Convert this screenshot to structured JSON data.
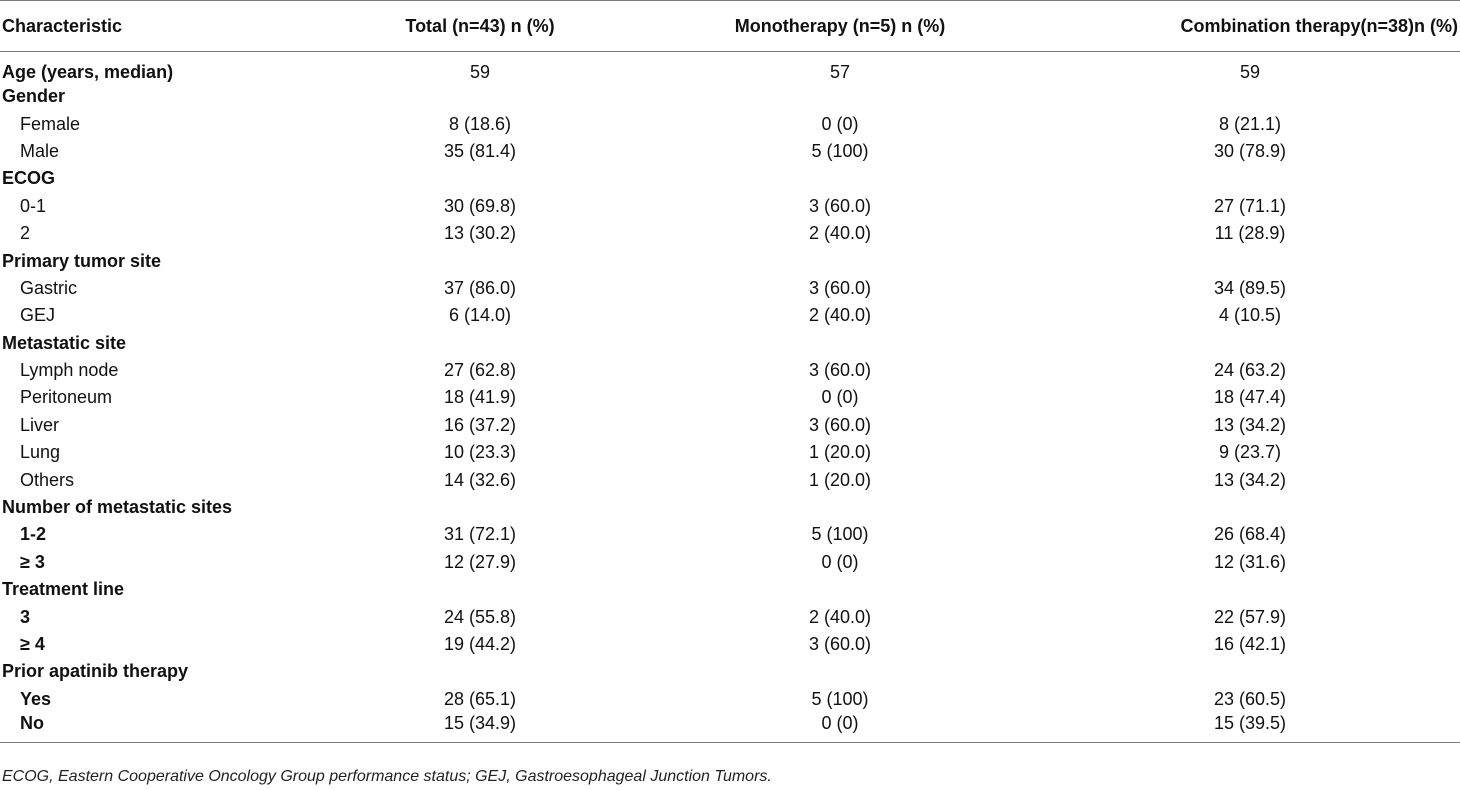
{
  "table": {
    "headers": [
      "Characteristic",
      "Total (n=43) n (%)",
      "Monotherapy (n=5) n (%)",
      "Combination therapy(n=38)n (%)"
    ],
    "rows": [
      {
        "label": "Age  (years, median)",
        "kind": "section",
        "values": [
          "59",
          "57",
          "59"
        ]
      },
      {
        "label": "Gender",
        "kind": "section",
        "values": [
          "",
          "",
          ""
        ]
      },
      {
        "label": "Female",
        "kind": "sub",
        "values": [
          "8 (18.6)",
          "0 (0)",
          "8 (21.1)"
        ]
      },
      {
        "label": "Male",
        "kind": "sub",
        "values": [
          "35 (81.4)",
          "5 (100)",
          "30 (78.9)"
        ]
      },
      {
        "label": "ECOG",
        "kind": "section",
        "values": [
          "",
          "",
          ""
        ]
      },
      {
        "label": "0-1",
        "kind": "sub",
        "values": [
          "30 (69.8)",
          "3 (60.0)",
          "27 (71.1)"
        ]
      },
      {
        "label": "2",
        "kind": "sub",
        "values": [
          "13 (30.2)",
          "2 (40.0)",
          "11 (28.9)"
        ]
      },
      {
        "label": "Primary tumor site",
        "kind": "section",
        "values": [
          "",
          "",
          ""
        ]
      },
      {
        "label": "Gastric",
        "kind": "sub",
        "values": [
          "37 (86.0)",
          "3 (60.0)",
          "34 (89.5)"
        ]
      },
      {
        "label": "GEJ",
        "kind": "sub",
        "values": [
          "6 (14.0)",
          "2 (40.0)",
          "4 (10.5)"
        ]
      },
      {
        "label": "Metastatic site",
        "kind": "section",
        "values": [
          "",
          "",
          ""
        ]
      },
      {
        "label": "Lymph node",
        "kind": "sub",
        "values": [
          "27 (62.8)",
          "3 (60.0)",
          "24 (63.2)"
        ]
      },
      {
        "label": "Peritoneum",
        "kind": "sub",
        "values": [
          "18 (41.9)",
          "0 (0)",
          "18 (47.4)"
        ]
      },
      {
        "label": "Liver",
        "kind": "sub",
        "values": [
          "16 (37.2)",
          "3 (60.0)",
          "13 (34.2)"
        ]
      },
      {
        "label": "Lung",
        "kind": "sub",
        "values": [
          "10 (23.3)",
          "1 (20.0)",
          "9 (23.7)"
        ]
      },
      {
        "label": "Others",
        "kind": "sub",
        "values": [
          "14 (32.6)",
          "1 (20.0)",
          "13 (34.2)"
        ]
      },
      {
        "label": "Number of metastatic sites",
        "kind": "section",
        "values": [
          "",
          "",
          ""
        ]
      },
      {
        "label": "1-2",
        "kind": "subbold",
        "values": [
          "31 (72.1)",
          "5 (100)",
          "26 (68.4)"
        ]
      },
      {
        "label": "≥ 3",
        "kind": "subbold",
        "values": [
          "12 (27.9)",
          "0 (0)",
          "12 (31.6)"
        ]
      },
      {
        "label": "Treatment line",
        "kind": "section",
        "values": [
          "",
          "",
          ""
        ]
      },
      {
        "label": "3",
        "kind": "subbold",
        "values": [
          "24 (55.8)",
          "2 (40.0)",
          "22 (57.9)"
        ]
      },
      {
        "label": "≥ 4",
        "kind": "subbold",
        "values": [
          "19 (44.2)",
          "3 (60.0)",
          "16 (42.1)"
        ]
      },
      {
        "label": "Prior apatinib therapy",
        "kind": "section",
        "values": [
          "",
          "",
          ""
        ]
      },
      {
        "label": "Yes",
        "kind": "subbold",
        "values": [
          "28 (65.1)",
          "5 (100)",
          "23 (60.5)"
        ]
      },
      {
        "label": "No",
        "kind": "subbold",
        "values": [
          "15 (34.9)",
          "0 (0)",
          "15 (39.5)"
        ]
      }
    ]
  },
  "footnote": "ECOG, Eastern Cooperative Oncology Group performance status; GEJ, Gastroesophageal Junction Tumors."
}
